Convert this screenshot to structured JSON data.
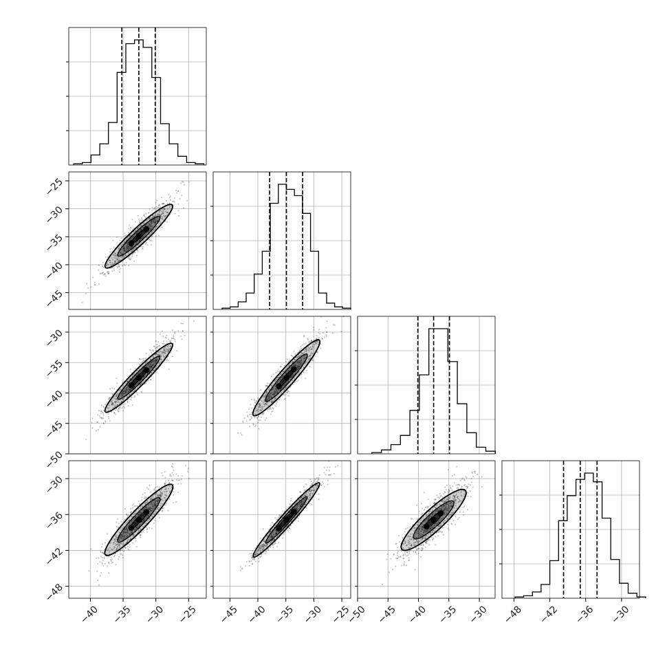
{
  "chart_data": {
    "type": "scatter",
    "title": "",
    "grid": true,
    "n_params": 4,
    "colors": {
      "line": "#000000",
      "grid": "#b0b0b0",
      "points": "#333333",
      "frame": "#000000"
    },
    "axes": [
      {
        "range": [
          -43.3,
          -22.3
        ],
        "ticks": [
          -40,
          -35,
          -30,
          -25
        ]
      },
      {
        "range": [
          -48,
          -23.4
        ],
        "ticks": [
          -45,
          -40,
          -35,
          -30,
          -25
        ]
      },
      {
        "range": [
          -50,
          -27.4
        ],
        "ticks": [
          -50,
          -45,
          -40,
          -35,
          -30
        ]
      },
      {
        "range": [
          -50,
          -27
        ],
        "ticks": [
          -48,
          -42,
          -36,
          -30
        ]
      }
    ],
    "quantiles": [
      [
        -35.2,
        -32.6,
        -30.1
      ],
      [
        -37.9,
        -34.9,
        -32.0
      ],
      [
        -40.1,
        -37.5,
        -34.9
      ],
      [
        -39.7,
        -36.9,
        -34.1
      ]
    ],
    "histograms": [
      {
        "counts": [
          1,
          2,
          8,
          17,
          34,
          74,
          97,
          100,
          94,
          70,
          33,
          17,
          7,
          2,
          1
        ]
      },
      {
        "counts": [
          1,
          2,
          6,
          13,
          28,
          46,
          84,
          99,
          95,
          90,
          76,
          46,
          13,
          5,
          2,
          1
        ]
      },
      {
        "counts": [
          1,
          3,
          7,
          14,
          33,
          60,
          95,
          95,
          70,
          38,
          16,
          5,
          2
        ]
      },
      {
        "counts": [
          1,
          2,
          5,
          11,
          30,
          62,
          82,
          95,
          100,
          93,
          64,
          31,
          12,
          4,
          1
        ]
      }
    ],
    "panels": [
      {
        "x": 0,
        "y": 1,
        "center": [
          -32.6,
          -34.9
        ],
        "slope": 1.1,
        "minor": 1.3
      },
      {
        "x": 0,
        "y": 2,
        "center": [
          -32.6,
          -37.5
        ],
        "slope": 1.1,
        "minor": 1.1
      },
      {
        "x": 1,
        "y": 2,
        "center": [
          -34.9,
          -37.5
        ],
        "slope": 1.05,
        "minor": 1.2
      },
      {
        "x": 0,
        "y": 3,
        "center": [
          -32.6,
          -36.9
        ],
        "slope": 1.15,
        "minor": 1.4
      },
      {
        "x": 1,
        "y": 3,
        "center": [
          -34.9,
          -36.9
        ],
        "slope": 1.05,
        "minor": 0.9
      },
      {
        "x": 2,
        "y": 3,
        "center": [
          -37.5,
          -36.9
        ],
        "slope": 0.95,
        "minor": 1.6
      }
    ]
  }
}
